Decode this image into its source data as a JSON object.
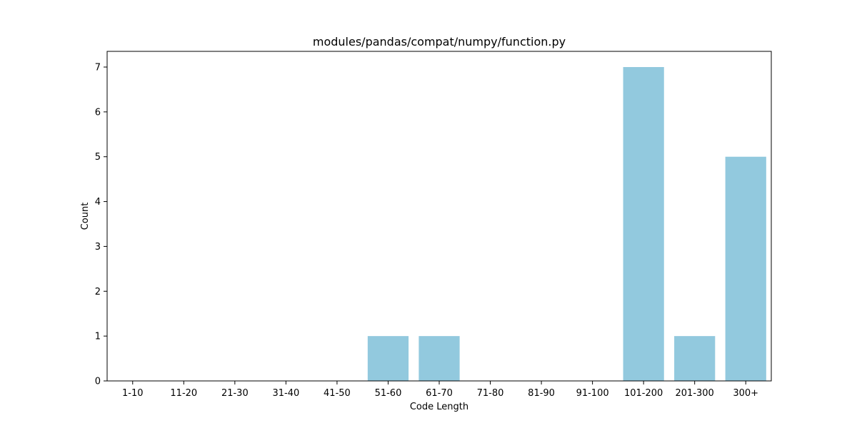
{
  "chart_data": {
    "type": "bar",
    "title": "modules/pandas/compat/numpy/function.py",
    "xlabel": "Code Length",
    "ylabel": "Count",
    "categories": [
      "1-10",
      "11-20",
      "21-30",
      "31-40",
      "41-50",
      "51-60",
      "61-70",
      "71-80",
      "81-90",
      "91-100",
      "101-200",
      "201-300",
      "300+"
    ],
    "values": [
      0,
      0,
      0,
      0,
      0,
      1,
      1,
      0,
      0,
      0,
      7,
      1,
      5
    ],
    "yticks": [
      0,
      1,
      2,
      3,
      4,
      5,
      6,
      7
    ],
    "ylim": [
      0,
      7.35
    ],
    "bar_color": "#92c9de",
    "grid": false,
    "legend": "none"
  }
}
